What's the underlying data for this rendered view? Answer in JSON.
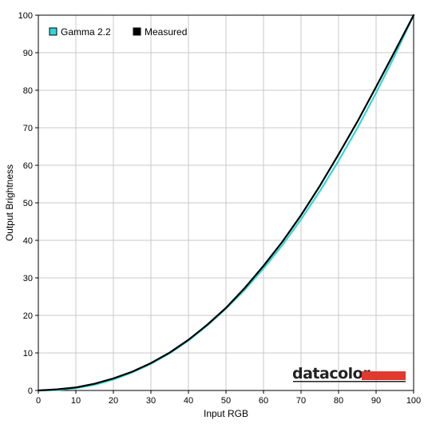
{
  "chart_data": {
    "type": "line",
    "xlabel": "Input RGB",
    "ylabel": "Output Brightness",
    "xlim": [
      0,
      100
    ],
    "ylim": [
      0,
      100
    ],
    "xticks": [
      0,
      10,
      20,
      30,
      40,
      50,
      60,
      70,
      80,
      90,
      100
    ],
    "yticks": [
      0,
      10,
      20,
      30,
      40,
      50,
      60,
      70,
      80,
      90,
      100
    ],
    "grid": true,
    "legend_position": "top-left",
    "series": [
      {
        "name": "Gamma 2.2",
        "color": "#33d6d6",
        "x": [
          0,
          5,
          10,
          15,
          20,
          25,
          30,
          35,
          40,
          45,
          50,
          55,
          60,
          65,
          70,
          75,
          80,
          85,
          90,
          95,
          100
        ],
        "y": [
          0,
          0.1,
          0.6,
          1.5,
          2.9,
          4.8,
          7.1,
          9.9,
          13.3,
          17.3,
          21.8,
          26.8,
          32.5,
          38.7,
          45.6,
          53.1,
          61.2,
          69.9,
          79.3,
          89.3,
          100
        ]
      },
      {
        "name": "Measured",
        "color": "#000000",
        "x": [
          0,
          5,
          10,
          15,
          20,
          25,
          30,
          35,
          40,
          45,
          50,
          55,
          60,
          65,
          70,
          75,
          80,
          85,
          90,
          95,
          100
        ],
        "y": [
          0,
          0.3,
          0.8,
          1.8,
          3.2,
          5.0,
          7.3,
          10.1,
          13.5,
          17.5,
          22.0,
          27.3,
          33.2,
          39.6,
          46.7,
          54.5,
          62.9,
          71.6,
          80.9,
          90.4,
          100
        ]
      }
    ]
  },
  "logo": {
    "text": "datacolor",
    "bar_color": "#e03a30"
  }
}
